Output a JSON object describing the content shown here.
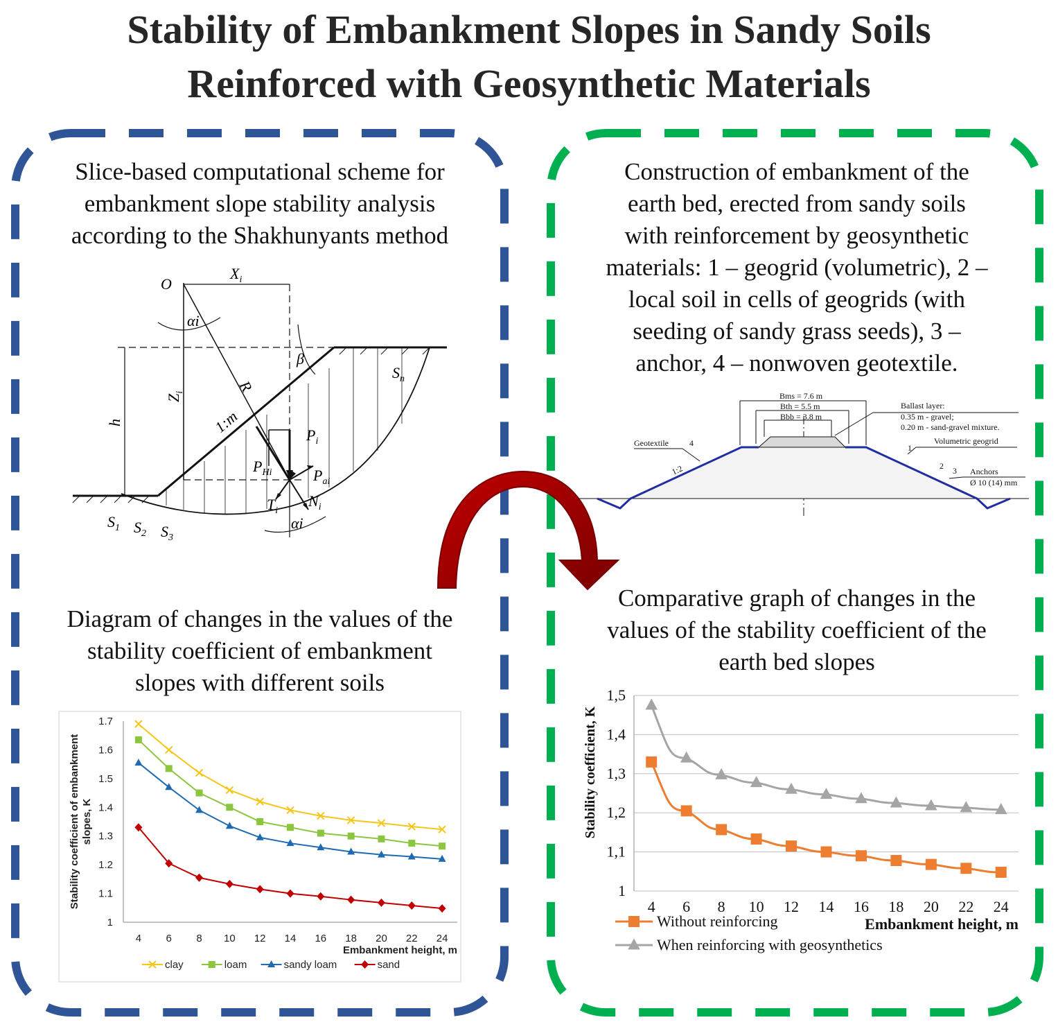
{
  "title": {
    "line1": "Stability of Embankment Slopes in Sandy Soils",
    "line2": "Reinforced with Geosynthetic Materials"
  },
  "colors": {
    "left_frame": "#2f5597",
    "right_frame": "#00b050",
    "arrow": "#a50000",
    "title": "#262626"
  },
  "left_top": {
    "caption": [
      "Slice-based computational scheme for",
      "embankment slope stability analysis",
      "according to the Shakhunyants method"
    ],
    "labels": {
      "O": "O",
      "Xi": "X",
      "Xi_sub": "i",
      "alpha_top": "αi",
      "beta": "β",
      "Zi": "Z",
      "Zi_sub": "i",
      "h": "h",
      "R": "R",
      "slope": "1:m",
      "Sn": "S",
      "Sn_sub": "n",
      "Pi": "P",
      "Pi_sub": "i",
      "PHi": "P",
      "PHi_sub": "Hi",
      "Pai": "P",
      "Pai_sub": "ai",
      "Ti": "T",
      "Ti_sub": "i",
      "Ni": "N",
      "Ni_sub": "i",
      "alpha_bottom": "αi",
      "S1": "S",
      "S1_sub": "1",
      "S2": "S",
      "S2_sub": "2",
      "S3": "S",
      "S3_sub": "3"
    }
  },
  "right_top": {
    "caption": [
      "Construction of embankment of the",
      "earth bed, erected from sandy soils",
      "with reinforcement by geosynthetic",
      "materials: 1 – geogrid (volumetric), 2 –",
      "local soil in cells of geogrids (with",
      "seeding of sandy grass seeds), 3 –",
      "anchor, 4 – nonwoven geotextile."
    ],
    "labels": {
      "bms": "Bms = 7.6 m",
      "bth": "Bth = 5.5 m",
      "bbb": "Bbb = 3.8 m",
      "ballast": "Ballast layer:",
      "gravel": "0.35 m - gravel;",
      "sandgravel": "0.20 m - sand-gravel mixture.",
      "geogrid": "Volumetric geogrid",
      "geotextile": "Geotextile",
      "n4": "4",
      "n1": "1",
      "n2": "2",
      "n3": "3",
      "slope": "1:2",
      "anchors": "Anchors",
      "anchor_dia": "Ø 10 (14) mm"
    }
  },
  "left_bottom": {
    "caption": [
      "Diagram of changes in the values of the",
      "stability coefficient of embankment",
      "slopes with different soils"
    ]
  },
  "right_bottom": {
    "caption": [
      "Comparative graph of changes in the",
      "values of the stability coefficient of the",
      "earth bed slopes"
    ]
  },
  "chart_data": [
    {
      "type": "line",
      "x": [
        4,
        6,
        8,
        10,
        12,
        14,
        16,
        18,
        20,
        22,
        24
      ],
      "xlabel": "Embankment height, m",
      "ylabel": "Stability coefficient of embankment slopes, K",
      "ylim": [
        1,
        1.7
      ],
      "yticks": [
        "1",
        "1.1",
        "1.2",
        "1.3",
        "1.4",
        "1.5",
        "1.6",
        "1.7"
      ],
      "grid": false,
      "legend_position": "bottom",
      "series": [
        {
          "name": "clay",
          "color": "#f5c518",
          "marker": "x",
          "values": [
            1.69,
            1.6,
            1.52,
            1.46,
            1.42,
            1.39,
            1.37,
            1.355,
            1.345,
            1.333,
            1.323
          ]
        },
        {
          "name": "loam",
          "color": "#8cc63f",
          "marker": "square",
          "values": [
            1.635,
            1.535,
            1.45,
            1.4,
            1.35,
            1.33,
            1.31,
            1.3,
            1.29,
            1.275,
            1.265
          ]
        },
        {
          "name": "sandy loam",
          "color": "#1f6ab0",
          "marker": "triangle",
          "values": [
            1.555,
            1.47,
            1.39,
            1.335,
            1.295,
            1.275,
            1.26,
            1.245,
            1.235,
            1.228,
            1.22
          ]
        },
        {
          "name": "sand",
          "color": "#c00000",
          "marker": "diamond",
          "values": [
            1.33,
            1.205,
            1.155,
            1.133,
            1.115,
            1.1,
            1.09,
            1.078,
            1.068,
            1.058,
            1.048
          ]
        }
      ]
    },
    {
      "type": "line",
      "x": [
        4,
        6,
        8,
        10,
        12,
        14,
        16,
        18,
        20,
        22,
        24
      ],
      "xlabel": "Embankment height, m",
      "ylabel": "Stability coefficient, K",
      "ylim": [
        1,
        1.5
      ],
      "yticks": [
        "1",
        "1,1",
        "1,2",
        "1,3",
        "1,4",
        "1,5"
      ],
      "grid": true,
      "legend_position": "bottom-left",
      "series": [
        {
          "name": "Without reinforcing",
          "color": "#ed7d31",
          "marker": "square",
          "values": [
            1.33,
            1.205,
            1.157,
            1.133,
            1.115,
            1.1,
            1.09,
            1.078,
            1.068,
            1.058,
            1.048
          ]
        },
        {
          "name": "When reinforcing with geosynthetics",
          "color": "#a5a5a5",
          "marker": "triangle",
          "values": [
            1.475,
            1.34,
            1.297,
            1.277,
            1.26,
            1.247,
            1.236,
            1.225,
            1.218,
            1.213,
            1.208
          ]
        }
      ]
    }
  ]
}
